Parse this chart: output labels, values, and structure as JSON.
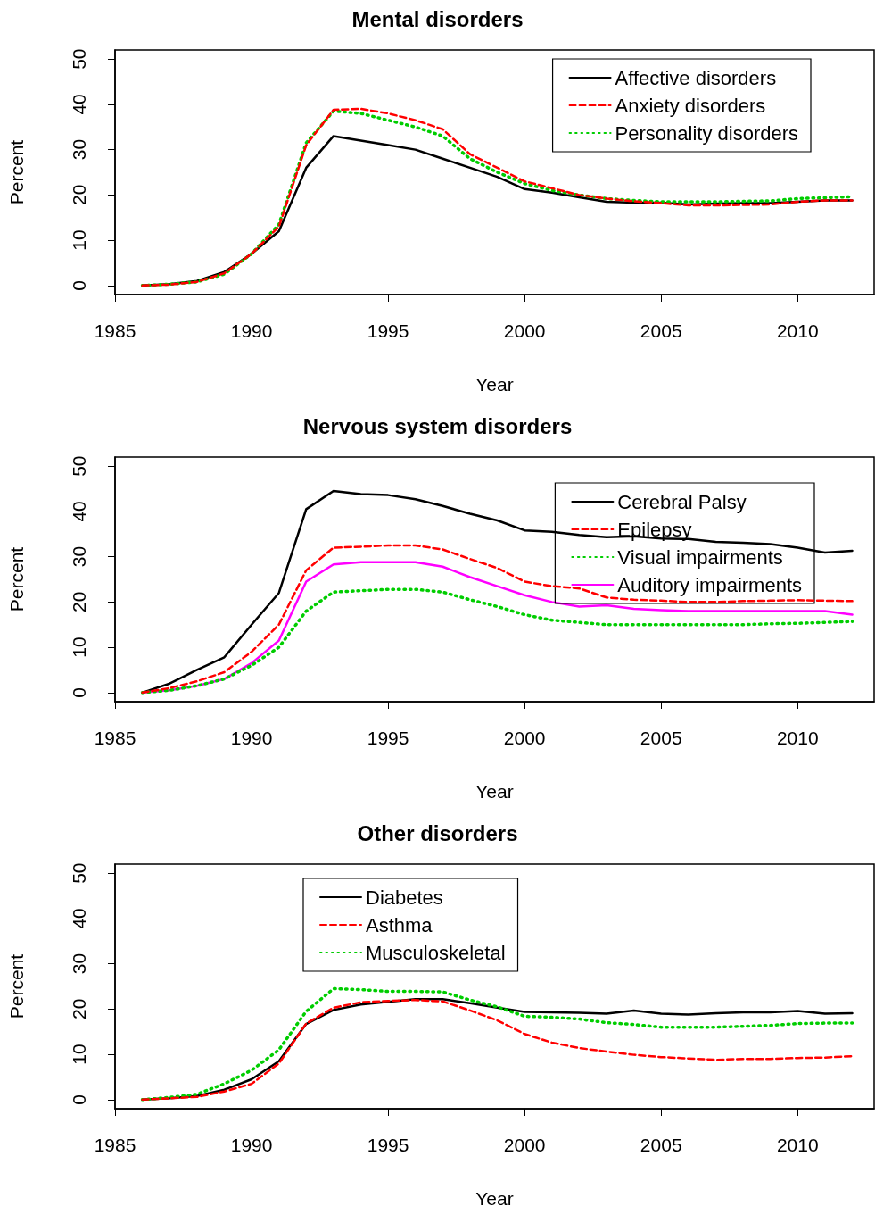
{
  "chart_data": [
    {
      "type": "line",
      "title": "Mental disorders",
      "xlabel": "Year",
      "ylabel": "Percent",
      "x": [
        1986,
        1987,
        1988,
        1989,
        1990,
        1991,
        1992,
        1993,
        1994,
        1995,
        1996,
        1997,
        1998,
        1999,
        2000,
        2001,
        2002,
        2003,
        2004,
        2005,
        2006,
        2007,
        2008,
        2009,
        2010,
        2011,
        2012
      ],
      "xlim": [
        1985,
        2012.8
      ],
      "xticks": [
        1985,
        1990,
        1995,
        2000,
        2005,
        2010
      ],
      "ylim": [
        -2,
        52
      ],
      "yticks": [
        0,
        10,
        20,
        30,
        40,
        50
      ],
      "legend": "top right",
      "grid": false,
      "marker": "none",
      "series": [
        {
          "name": "Affective disorders",
          "color": "#000000",
          "line_style": "solid",
          "values": [
            0,
            0.3,
            1,
            3,
            7,
            12,
            26,
            33,
            32,
            31,
            30,
            28,
            26,
            24,
            21.3,
            20.5,
            19.5,
            18.5,
            18.3,
            18.3,
            17.9,
            18.1,
            18.2,
            18.2,
            18.5,
            18.8,
            18.8
          ]
        },
        {
          "name": "Anxiety disorders",
          "color": "#ff0000",
          "line_style": "dashed",
          "values": [
            0,
            0.2,
            0.8,
            2.7,
            7,
            13,
            31,
            38.8,
            39,
            38,
            36.5,
            34.5,
            29,
            26,
            23,
            21.5,
            20,
            19.2,
            18.6,
            18.2,
            17.7,
            17.7,
            17.8,
            17.9,
            18.5,
            18.8,
            18.8
          ]
        },
        {
          "name": "Personality disorders",
          "color": "#00cd00",
          "line_style": "dotted",
          "values": [
            0,
            0.3,
            0.8,
            2.5,
            7,
            13.5,
            31.5,
            38.5,
            38,
            36.5,
            35,
            33,
            28,
            25,
            22.5,
            21,
            20,
            19.2,
            18.8,
            18.5,
            18.5,
            18.5,
            18.6,
            18.7,
            19.2,
            19.4,
            19.6
          ]
        }
      ]
    },
    {
      "type": "line",
      "title": "Nervous system disorders",
      "xlabel": "Year",
      "ylabel": "Percent",
      "x": [
        1986,
        1987,
        1988,
        1989,
        1990,
        1991,
        1992,
        1993,
        1994,
        1995,
        1996,
        1997,
        1998,
        1999,
        2000,
        2001,
        2002,
        2003,
        2004,
        2005,
        2006,
        2007,
        2008,
        2009,
        2010,
        2011,
        2012
      ],
      "xlim": [
        1985,
        2012.8
      ],
      "xticks": [
        1985,
        1990,
        1995,
        2000,
        2005,
        2010
      ],
      "ylim": [
        -2,
        52
      ],
      "yticks": [
        0,
        10,
        20,
        30,
        40,
        50
      ],
      "legend": "right",
      "grid": false,
      "marker": "none",
      "series": [
        {
          "name": "Cerebral Palsy",
          "color": "#000000",
          "line_style": "solid",
          "values": [
            0,
            2,
            5,
            7.8,
            15,
            22,
            40.5,
            44.5,
            43.8,
            43.6,
            42.7,
            41.2,
            39.5,
            38,
            35.8,
            35.5,
            34.8,
            34.3,
            34.5,
            34,
            33.9,
            33.3,
            33.1,
            32.8,
            32,
            30.9,
            31.3
          ]
        },
        {
          "name": "Epilepsy",
          "color": "#ff0000",
          "line_style": "dashed",
          "values": [
            0,
            1,
            2.5,
            4.5,
            9,
            15,
            27,
            32,
            32.2,
            32.5,
            32.5,
            31.6,
            29.5,
            27.5,
            24.5,
            23.5,
            23,
            21,
            20.5,
            20.3,
            20,
            20,
            20.2,
            20.3,
            20.4,
            20.3,
            20.2
          ]
        },
        {
          "name": "Visual impairments",
          "color": "#00cd00",
          "line_style": "dotted",
          "values": [
            0,
            0.5,
            1.5,
            3,
            6,
            10,
            18,
            22.2,
            22.5,
            22.8,
            22.8,
            22.2,
            20.5,
            19,
            17.2,
            16,
            15.5,
            15,
            15,
            15,
            15,
            15,
            15,
            15.2,
            15.3,
            15.5,
            15.7
          ]
        },
        {
          "name": "Auditory impairments",
          "color": "#ff00ff",
          "line_style": "solid",
          "values": [
            0,
            0.5,
            1.5,
            3,
            6.5,
            11.5,
            24.5,
            28.3,
            28.8,
            28.8,
            28.8,
            27.8,
            25.5,
            23.5,
            21.5,
            20,
            19,
            19.3,
            18.5,
            18.2,
            18,
            18,
            18,
            18,
            18,
            18,
            17.2
          ]
        }
      ]
    },
    {
      "type": "line",
      "title": "Other disorders",
      "xlabel": "Year",
      "ylabel": "Percent",
      "x": [
        1986,
        1987,
        1988,
        1989,
        1990,
        1991,
        1992,
        1993,
        1994,
        1995,
        1996,
        1997,
        1998,
        1999,
        2000,
        2001,
        2002,
        2003,
        2004,
        2005,
        2006,
        2007,
        2008,
        2009,
        2010,
        2011,
        2012
      ],
      "xlim": [
        1985,
        2012.8
      ],
      "xticks": [
        1985,
        1990,
        1995,
        2000,
        2005,
        2010
      ],
      "ylim": [
        -2,
        52
      ],
      "yticks": [
        0,
        10,
        20,
        30,
        40,
        50
      ],
      "legend": "top",
      "grid": false,
      "marker": "none",
      "series": [
        {
          "name": "Diabetes",
          "color": "#000000",
          "line_style": "solid",
          "values": [
            0,
            0.3,
            0.8,
            2.2,
            4.5,
            8.5,
            16.7,
            19.8,
            21,
            21.6,
            22.2,
            22.2,
            21.3,
            20.3,
            19.4,
            19.3,
            19.2,
            19,
            19.7,
            19,
            18.8,
            19.1,
            19.3,
            19.3,
            19.6,
            19,
            19.1
          ]
        },
        {
          "name": "Asthma",
          "color": "#ff0000",
          "line_style": "dashed",
          "values": [
            0,
            0.3,
            0.6,
            1.8,
            3.5,
            8,
            16.8,
            20.3,
            21.5,
            21.8,
            22,
            21.7,
            19.7,
            17.5,
            14.5,
            12.6,
            11.4,
            10.6,
            9.9,
            9.4,
            9.1,
            8.8,
            9,
            9,
            9.2,
            9.3,
            9.6
          ]
        },
        {
          "name": "Musculoskeletal",
          "color": "#00cd00",
          "line_style": "dotted",
          "values": [
            0,
            0.5,
            1.2,
            3.5,
            6.5,
            11,
            19.5,
            24.5,
            24.3,
            23.9,
            23.9,
            23.8,
            22,
            20.5,
            18.4,
            18.2,
            17.8,
            17,
            16.6,
            16,
            16,
            16,
            16.2,
            16.4,
            16.8,
            16.9,
            16.9
          ]
        }
      ]
    }
  ]
}
